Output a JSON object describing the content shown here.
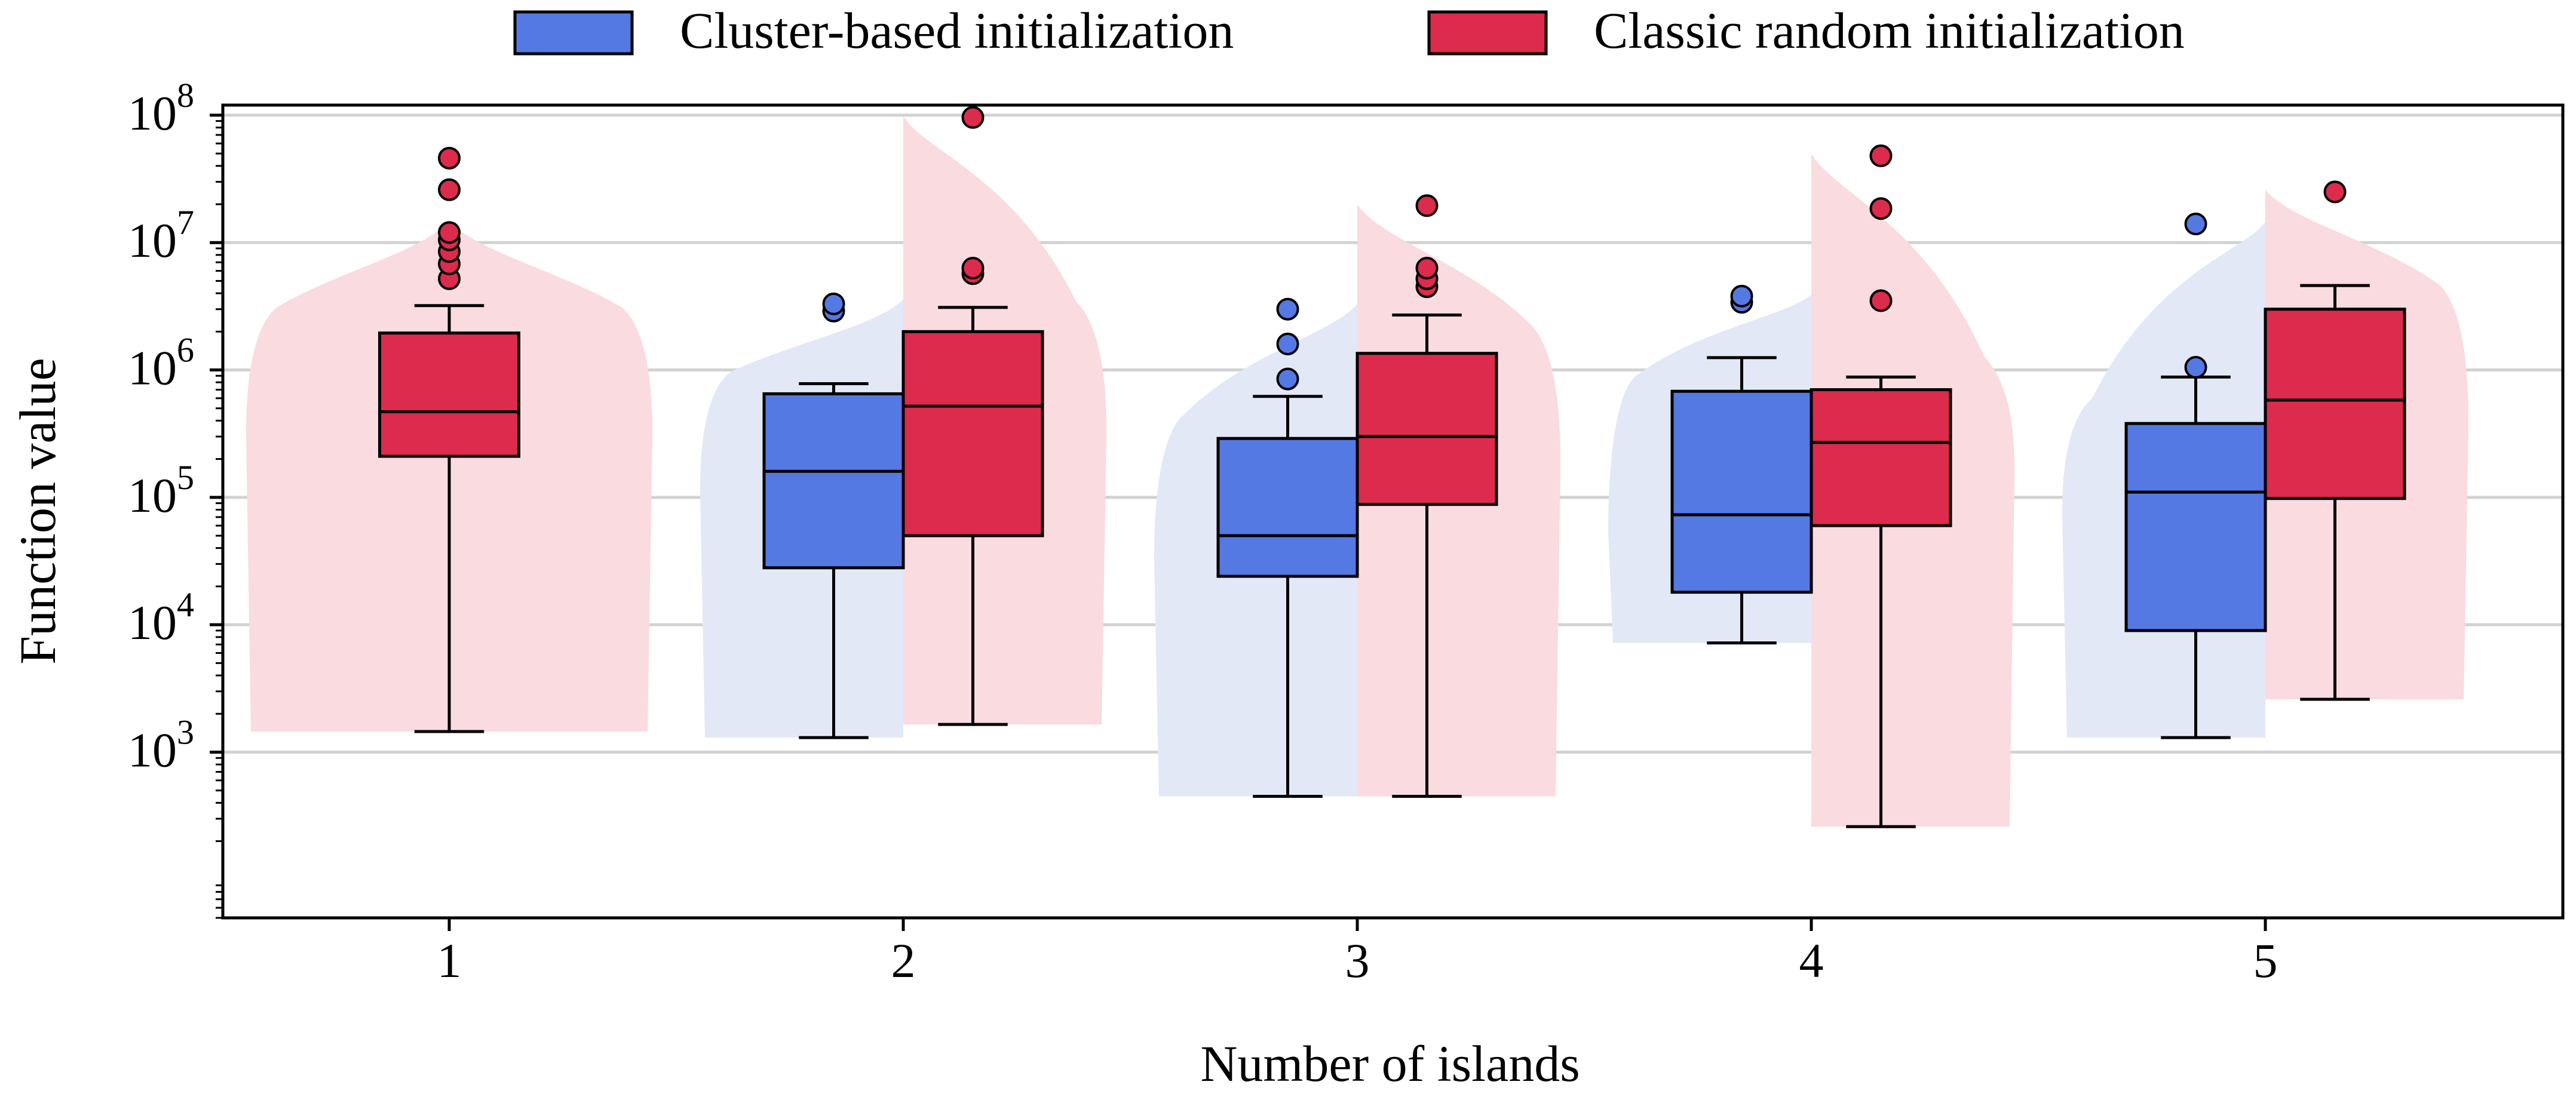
{
  "chart_data": {
    "type": "boxplot",
    "title": "",
    "xlabel": "Number of islands",
    "ylabel": "Function value",
    "yscale": "log",
    "ylim": [
      50,
      120000000
    ],
    "grid": "horizontal",
    "legend_position": "top-center",
    "categories": [
      "1",
      "2",
      "3",
      "4",
      "5"
    ],
    "yticks": [
      {
        "value": 1000,
        "base": "10",
        "exp": "3"
      },
      {
        "value": 10000,
        "base": "10",
        "exp": "4"
      },
      {
        "value": 100000,
        "base": "10",
        "exp": "5"
      },
      {
        "value": 1000000,
        "base": "10",
        "exp": "6"
      },
      {
        "value": 10000000,
        "base": "10",
        "exp": "7"
      },
      {
        "value": 100000000,
        "base": "10",
        "exp": "8"
      }
    ],
    "series": [
      {
        "name": "Cluster-based initialization",
        "color": "#5579e3",
        "edge_color": "#000000",
        "shade_color": "#e3e8f7",
        "boxes": [
          null,
          {
            "category": "2",
            "whisker_low": 1300,
            "q1": 28000,
            "median": 160000,
            "q3": 650000,
            "whisker_high": 780000,
            "outliers": [
              2900000,
              3300000
            ],
            "violin_max": 3600000
          },
          {
            "category": "3",
            "whisker_low": 450,
            "q1": 24000,
            "median": 50000,
            "q3": 290000,
            "whisker_high": 620000,
            "outliers": [
              850000,
              1600000,
              3000000
            ],
            "violin_max": 3300000
          },
          {
            "category": "4",
            "whisker_low": 7200,
            "q1": 18000,
            "median": 73000,
            "q3": 680000,
            "whisker_high": 1250000,
            "outliers": [
              3400000,
              3800000
            ],
            "violin_max": 3900000
          },
          {
            "category": "5",
            "whisker_low": 1300,
            "q1": 9000,
            "median": 110000,
            "q3": 380000,
            "whisker_high": 880000,
            "outliers": [
              1050000,
              14000000
            ],
            "violin_max": 14500000
          }
        ]
      },
      {
        "name": "Classic random initialization",
        "color": "#dc2b4c",
        "edge_color": "#000000",
        "shade_color": "#f9dbe0",
        "boxes": [
          {
            "category": "1",
            "whisker_low": 1450,
            "q1": 210000,
            "median": 470000,
            "q3": 1950000,
            "whisker_high": 3200000,
            "outliers": [
              5200000,
              6800000,
              8500000,
              10500000,
              12000000,
              26000000,
              46000000
            ],
            "violin_max": 15000000
          },
          {
            "category": "2",
            "whisker_low": 1650,
            "q1": 50000,
            "median": 520000,
            "q3": 2000000,
            "whisker_high": 3100000,
            "outliers": [
              5700000,
              6300000,
              96000000
            ],
            "violin_max": 98000000
          },
          {
            "category": "3",
            "whisker_low": 450,
            "q1": 88000,
            "median": 300000,
            "q3": 1350000,
            "whisker_high": 2700000,
            "outliers": [
              4500000,
              5200000,
              6300000,
              19500000
            ],
            "violin_max": 20000000
          },
          {
            "category": "4",
            "whisker_low": 260,
            "q1": 60000,
            "median": 270000,
            "q3": 700000,
            "whisker_high": 880000,
            "outliers": [
              3500000,
              18500000,
              48000000
            ],
            "violin_max": 50000000
          },
          {
            "category": "5",
            "whisker_low": 2600,
            "q1": 98000,
            "median": 580000,
            "q3": 3000000,
            "whisker_high": 4600000,
            "outliers": [
              25000000
            ],
            "violin_max": 26000000
          }
        ]
      }
    ]
  }
}
